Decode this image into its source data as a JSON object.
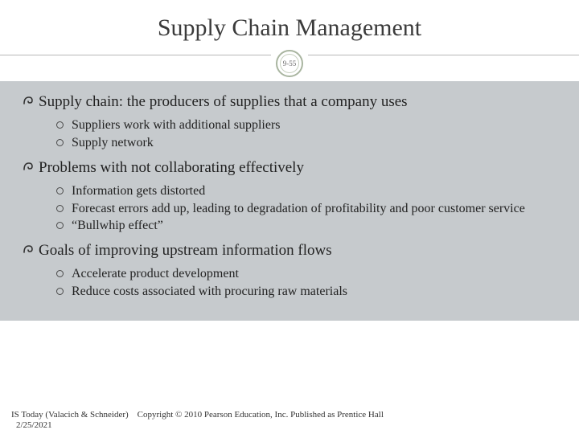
{
  "title": "Supply Chain Management",
  "badge": "9-55",
  "colors": {
    "band_bg": "#c6cacd",
    "badge_outer": "#a9b5a0",
    "badge_inner": "#c7d0c0",
    "title_color": "#3b3b3b",
    "text_color": "#222222",
    "hr_color": "#b8b8b8"
  },
  "typography": {
    "title_fontsize": 30,
    "main_fontsize": 19,
    "sub_fontsize": 16,
    "footer_fontsize": 11
  },
  "items": [
    {
      "text": "Supply chain: the producers of supplies that a company uses",
      "subs": [
        "Suppliers work with additional suppliers",
        "Supply network"
      ]
    },
    {
      "text": "Problems with not collaborating effectively",
      "subs": [
        "Information gets distorted",
        "Forecast errors add up, leading to degradation of profitability and poor customer service",
        "“Bullwhip effect”"
      ]
    },
    {
      "text": "Goals of improving upstream information flows",
      "subs": [
        "Accelerate product development",
        "Reduce costs associated with procuring raw materials"
      ]
    }
  ],
  "footer": {
    "line1": "IS Today (Valacich & Schneider)    Copyright © 2010 Pearson Education, Inc. Published as Prentice Hall",
    "line2": "2/25/2021"
  }
}
